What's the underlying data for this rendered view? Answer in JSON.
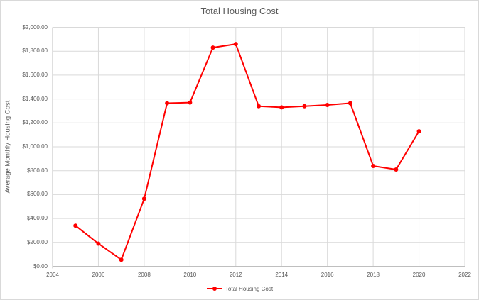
{
  "chart_data": {
    "type": "line",
    "title": "Total Housing Cost",
    "ylabel": "Average Monthly Housing Cost",
    "xlabel": "",
    "x": [
      2005,
      2006,
      2007,
      2008,
      2009,
      2010,
      2011,
      2012,
      2013,
      2014,
      2015,
      2016,
      2017,
      2018,
      2019,
      2020
    ],
    "series": [
      {
        "name": "Total Housing Cost",
        "color": "#FF0000",
        "values": [
          340,
          190,
          55,
          565,
          1365,
          1370,
          1830,
          1860,
          1340,
          1330,
          1340,
          1350,
          1365,
          840,
          810,
          1130
        ]
      }
    ],
    "xlim": [
      2004,
      2022
    ],
    "ylim": [
      0,
      2000
    ],
    "x_ticks": [
      2004,
      2006,
      2008,
      2010,
      2012,
      2014,
      2016,
      2018,
      2020,
      2022
    ],
    "y_ticks": [
      0,
      200,
      400,
      600,
      800,
      1000,
      1200,
      1400,
      1600,
      1800,
      2000
    ],
    "y_tick_labels": [
      "$0.00",
      "$200.00",
      "$400.00",
      "$600.00",
      "$800.00",
      "$1,000.00",
      "$1,200.00",
      "$1,400.00",
      "$1,600.00",
      "$1,800.00",
      "$2,000.00"
    ],
    "grid": true,
    "legend_position": "bottom",
    "colors": {
      "series": "#FF0000",
      "gridline": "#D9D9D9",
      "axis_line": "#BFBFBF",
      "text": "#595959",
      "border": "#D9D9D9",
      "background": "#FFFFFF"
    }
  }
}
